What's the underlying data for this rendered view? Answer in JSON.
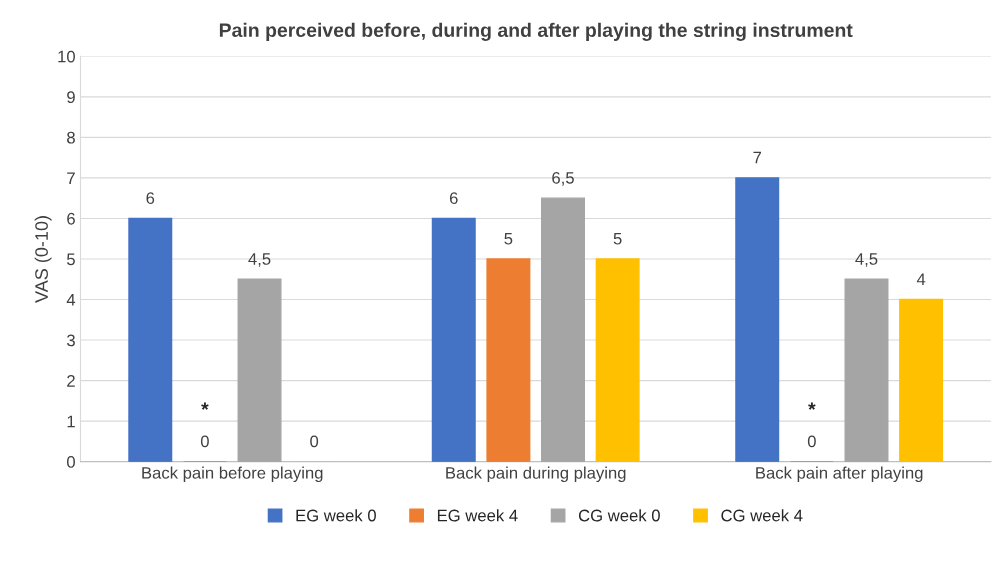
{
  "chart_data": {
    "type": "bar",
    "title": "Pain perceived before, during and after playing the string instrument",
    "ylabel": "VAS (0-10)",
    "categories": [
      "Back pain before playing",
      "Back pain during playing",
      "Back pain after playing"
    ],
    "series": [
      {
        "name": "EG week 0",
        "color": "#4472c4",
        "values": [
          6,
          6,
          7
        ],
        "value_labels": [
          "6",
          "6",
          "7"
        ]
      },
      {
        "name": "EG week 4",
        "color": "#ed7d31",
        "values": [
          0,
          5,
          0
        ],
        "value_labels": [
          "0",
          "5",
          "0"
        ]
      },
      {
        "name": "CG week 0",
        "color": "#a5a5a5",
        "values": [
          4.5,
          6.5,
          4.5
        ],
        "value_labels": [
          "4,5",
          "6,5",
          "4,5"
        ]
      },
      {
        "name": "CG week 4",
        "color": "#ffc000",
        "values": [
          0,
          5,
          4
        ],
        "value_labels": [
          "0",
          "5",
          "4"
        ]
      }
    ],
    "annotations": [
      "*",
      "*"
    ],
    "ylim": [
      0,
      10
    ],
    "yticks": [
      0,
      1,
      2,
      3,
      4,
      5,
      6,
      7,
      8,
      9,
      10
    ],
    "grid": "y",
    "legend": "bottom"
  }
}
